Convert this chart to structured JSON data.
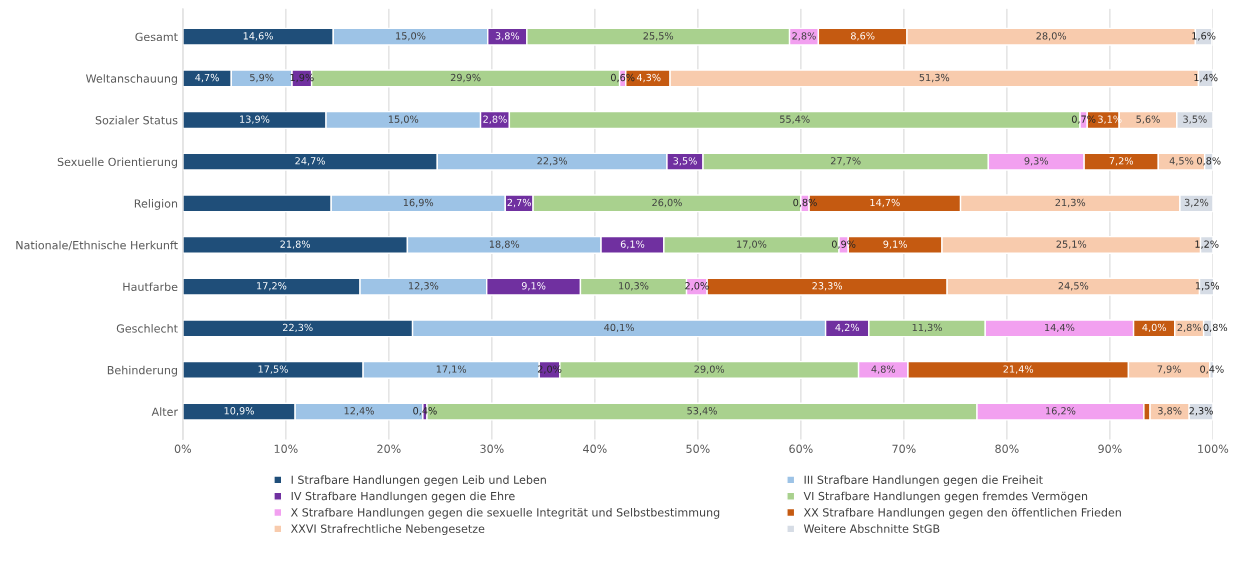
{
  "chart_data": {
    "type": "bar",
    "orientation": "horizontal",
    "stacked": true,
    "categories": [
      "Gesamt",
      "Weltanschauung",
      "Sozialer Status",
      "Sexuelle Orientierung",
      "Religion",
      "Nationale/Ethnische Herkunft",
      "Hautfarbe",
      "Geschlecht",
      "Behinderung",
      "Alter"
    ],
    "series": [
      {
        "name": "I Strafbare Handlungen gegen Leib und Leben",
        "color": "#1f4e79",
        "values": [
          14.6,
          4.7,
          13.9,
          24.7,
          14.4,
          21.8,
          17.2,
          22.3,
          17.5,
          10.9
        ],
        "value_labels": [
          "14,6%",
          "4,7%",
          "13,9%",
          "24,7%",
          null,
          "21,8%",
          "17,2%",
          "22,3%",
          "17,5%",
          "10,9%"
        ]
      },
      {
        "name": "III Strafbare Handlungen gegen die Freiheit",
        "color": "#9dc3e6",
        "values": [
          15.0,
          5.9,
          15.0,
          22.3,
          16.9,
          18.8,
          12.3,
          40.1,
          17.1,
          12.4
        ],
        "value_labels": [
          "15,0%",
          "5,9%",
          "15,0%",
          "22,3%",
          "16,9%",
          "18,8%",
          "12,3%",
          "40,1%",
          "17,1%",
          "12,4%"
        ]
      },
      {
        "name": "IV Strafbare Handlungen gegen die Ehre",
        "color": "#7030a0",
        "values": [
          3.8,
          1.9,
          2.8,
          3.5,
          2.7,
          6.1,
          9.1,
          4.2,
          2.0,
          0.4
        ],
        "value_labels": [
          "3,8%",
          "1,9%",
          "2,8%",
          "3,5%",
          "2,7%",
          "6,1%",
          "9,1%",
          "4,2%",
          "2,0%",
          "0,4%"
        ]
      },
      {
        "name": "VI Strafbare Handlungen gegen fremdes Vermögen",
        "color": "#a9d18e",
        "values": [
          25.5,
          29.9,
          55.4,
          27.7,
          26.0,
          17.0,
          10.3,
          11.3,
          29.0,
          53.4
        ],
        "value_labels": [
          "25,5%",
          "29,9%",
          "55,4%",
          "27,7%",
          "26,0%",
          "17,0%",
          "10,3%",
          "11,3%",
          "29,0%",
          "53,4%"
        ]
      },
      {
        "name": "X Strafbare Handlungen gegen die sexuelle Integrität und Selbstbestimmung",
        "color": "#f2a0f0",
        "values": [
          2.8,
          0.6,
          0.7,
          9.3,
          0.8,
          0.9,
          2.0,
          14.4,
          4.8,
          16.2
        ],
        "value_labels": [
          "2,8%",
          "0,6%",
          "0,7%",
          "9,3%",
          "0,8%",
          "0,9%",
          "2,0%",
          "14,4%",
          "4,8%",
          "16,2%"
        ]
      },
      {
        "name": "XX Strafbare Handlungen gegen den öffentlichen Frieden",
        "color": "#c55a11",
        "values": [
          8.6,
          4.3,
          3.1,
          7.2,
          14.7,
          9.1,
          23.3,
          4.0,
          21.4,
          0.6
        ],
        "value_labels": [
          "8,6%",
          "4,3%",
          "3,1%",
          "7,2%",
          "14,7%",
          "9,1%",
          "23,3%",
          "4,0%",
          "21,4%",
          null
        ]
      },
      {
        "name": "XXVI Strafrechtliche Nebengesetze",
        "color": "#f8cbad",
        "values": [
          28.0,
          51.3,
          5.6,
          4.5,
          21.3,
          25.1,
          24.5,
          2.8,
          7.9,
          3.8
        ],
        "value_labels": [
          "28,0%",
          "51,3%",
          "5,6%",
          "4,5%",
          "21,3%",
          "25,1%",
          "24,5%",
          "2,8%",
          "7,9%",
          "3,8%"
        ]
      },
      {
        "name": "Weitere Abschnitte StGB",
        "color": "#d6dce5",
        "values": [
          1.6,
          1.4,
          3.5,
          0.8,
          3.2,
          1.2,
          1.5,
          0.8,
          0.4,
          2.3
        ],
        "value_labels": [
          "1,6%",
          "1,4%",
          "3,5%",
          "0,8%",
          "3,2%",
          "1,2%",
          "1,5%",
          "0,8%",
          "0,4%",
          "2,3%"
        ]
      }
    ],
    "xlim": [
      0,
      100
    ],
    "xticks": [
      {
        "value": 0,
        "label": "0%"
      },
      {
        "value": 10,
        "label": "10%"
      },
      {
        "value": 20,
        "label": "20%"
      },
      {
        "value": 30,
        "label": "30%"
      },
      {
        "value": 40,
        "label": "40%"
      },
      {
        "value": 50,
        "label": "50%"
      },
      {
        "value": 60,
        "label": "60%"
      },
      {
        "value": 70,
        "label": "70%"
      },
      {
        "value": 80,
        "label": "80%"
      },
      {
        "value": 90,
        "label": "90%"
      },
      {
        "value": 100,
        "label": "100%"
      }
    ],
    "grid": "x",
    "legend": "bottom"
  }
}
